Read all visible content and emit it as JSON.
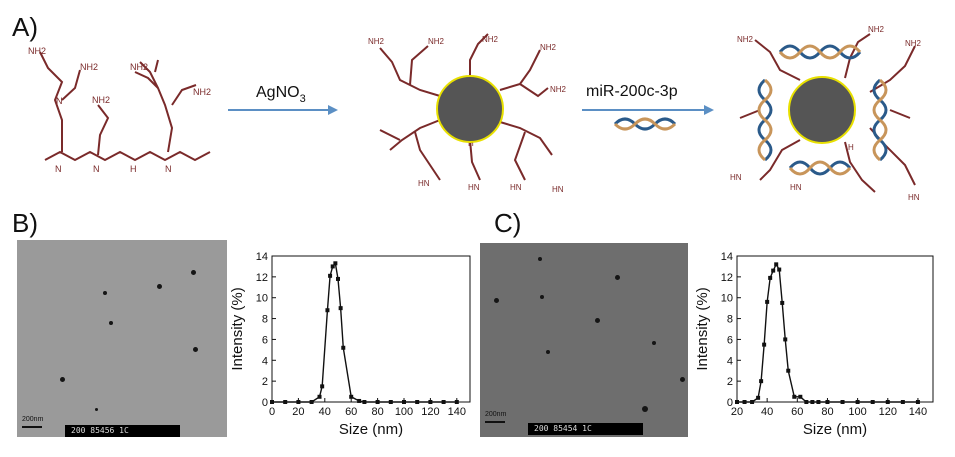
{
  "panels": {
    "a": {
      "label": "A)",
      "step1": {
        "reagent": "AgNO",
        "subscript": "3"
      },
      "step2": {
        "reagent": "miR-200c-3p"
      },
      "amines": [
        "NH2",
        "N",
        "HN",
        "H"
      ]
    },
    "b": {
      "label": "B)",
      "tem": {
        "scale_text": "200nm",
        "info_text": "200 85456  1C"
      }
    },
    "c": {
      "label": "C)",
      "tem": {
        "scale_text": "200nm",
        "info_text": "200 85454  1C"
      }
    }
  },
  "colors": {
    "polymer": "#7a2a2a",
    "arrow": "#5b8fc4",
    "particle_fill": "#555555",
    "particle_ring": "#e8e000",
    "dna_blue": "#2a5a8a",
    "dna_tan": "#c8955a"
  },
  "chart_data": [
    {
      "type": "line",
      "xlabel": "Size (nm)",
      "ylabel": "Intensity (%)",
      "xlim": [
        0,
        150
      ],
      "ylim": [
        0,
        14
      ],
      "xticks": [
        0,
        20,
        40,
        60,
        80,
        100,
        120,
        140
      ],
      "yticks": [
        0,
        2,
        4,
        6,
        8,
        10,
        12,
        14
      ],
      "series": [
        {
          "x": [
            0,
            10,
            20,
            30,
            36,
            38,
            42,
            44,
            46,
            48,
            50,
            52,
            54,
            60,
            66,
            70,
            80,
            90,
            100,
            110,
            120,
            130,
            140
          ],
          "y": [
            0,
            0,
            0,
            0,
            0.5,
            1.5,
            8.8,
            12.1,
            13.0,
            13.3,
            11.8,
            9.0,
            5.2,
            0.5,
            0.1,
            0,
            0,
            0,
            0,
            0,
            0,
            0,
            0
          ]
        }
      ]
    },
    {
      "type": "line",
      "xlabel": "Size (nm)",
      "ylabel": "Intensity (%)",
      "xlim": [
        20,
        150
      ],
      "ylim": [
        0,
        14
      ],
      "xticks": [
        20,
        40,
        60,
        80,
        100,
        120,
        140
      ],
      "yticks": [
        0,
        2,
        4,
        6,
        8,
        10,
        12,
        14
      ],
      "series": [
        {
          "x": [
            20,
            25,
            30,
            34,
            36,
            38,
            40,
            42,
            44,
            46,
            48,
            50,
            52,
            54,
            58,
            62,
            66,
            70,
            74,
            80,
            90,
            100,
            110,
            120,
            130,
            140
          ],
          "y": [
            0,
            0,
            0,
            0.4,
            2.0,
            5.5,
            9.6,
            11.9,
            12.6,
            13.2,
            12.7,
            9.5,
            6.0,
            3.0,
            0.5,
            0.5,
            0,
            0,
            0,
            0,
            0,
            0,
            0,
            0,
            0,
            0
          ]
        }
      ]
    }
  ]
}
